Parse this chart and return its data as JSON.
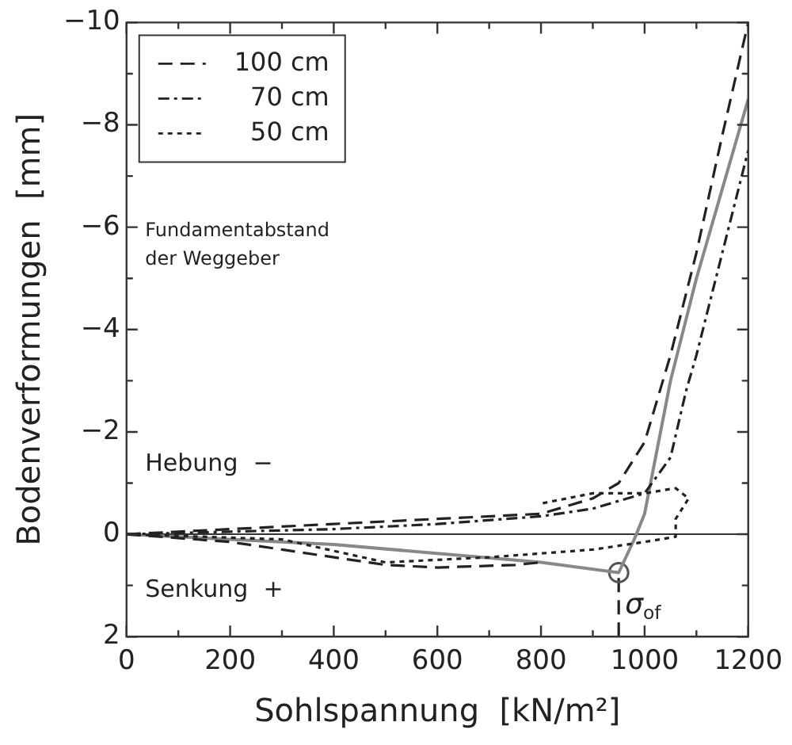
{
  "chart_data": {
    "type": "line",
    "xlabel": "Sohlspannung  [kN/m²]",
    "ylabel": "Bodenverformungen  [mm]",
    "xlim": [
      0,
      1200
    ],
    "ylim": [
      2,
      -10
    ],
    "xticks": [
      0,
      {
        "value": 100,
        "label": null
      },
      200,
      {
        "value": 300,
        "label": null
      },
      400,
      {
        "value": 500,
        "label": null
      },
      600,
      {
        "value": 700,
        "label": null
      },
      800,
      {
        "value": 900,
        "label": null
      },
      1000,
      {
        "value": 1100,
        "label": null
      },
      1200
    ],
    "yticks": [
      2,
      {
        "value": 1,
        "label": null
      },
      0,
      {
        "value": -1,
        "label": null
      },
      {
        "value": -2,
        "label": "−2"
      },
      {
        "value": -3,
        "label": null
      },
      {
        "value": -4,
        "label": "−4"
      },
      {
        "value": -5,
        "label": null
      },
      {
        "value": -6,
        "label": "−6"
      },
      {
        "value": -7,
        "label": null
      },
      {
        "value": -8,
        "label": "−8"
      },
      {
        "value": -9,
        "label": null
      },
      {
        "value": -10,
        "label": "−10"
      }
    ],
    "grid": false,
    "legend": "top left",
    "marker": "none",
    "series": [
      {
        "name": "100 cm",
        "color": "#222222",
        "line_style": "dashed",
        "x": [
          0,
          200,
          400,
          600,
          800,
          900,
          950,
          1000,
          1050,
          1100,
          1150,
          1200
        ],
        "values": [
          0,
          -0.1,
          -0.2,
          -0.3,
          -0.4,
          -0.7,
          -1.0,
          -1.8,
          -3.5,
          -5.5,
          -7.8,
          -10
        ]
      },
      {
        "name": "70 cm",
        "color": "#222222",
        "line_style": "dashdot",
        "x": [
          0,
          200,
          400,
          600,
          800,
          900,
          1000,
          1050,
          1080,
          1100,
          1150,
          1200
        ],
        "values": [
          0,
          -0.05,
          -0.1,
          -0.2,
          -0.35,
          -0.5,
          -0.8,
          -1.5,
          -2.8,
          -3.5,
          -5.5,
          -7.5
        ]
      },
      {
        "name": "50 cm",
        "color": "#222222",
        "line_style": "dotted",
        "x": [
          0,
          300,
          500,
          700,
          900,
          1000,
          1060,
          1060,
          1085,
          1060,
          1000,
          900,
          800
        ],
        "values": [
          0,
          0.1,
          0.55,
          0.45,
          0.3,
          0.15,
          0.05,
          -0.3,
          -0.7,
          -0.9,
          -0.8,
          -0.8,
          -0.6
        ]
      },
      {
        "color": "#222222",
        "line_style": "dashed",
        "x": [
          0,
          200,
          300,
          400,
          500,
          600,
          750,
          800
        ],
        "values": [
          0,
          0.15,
          0.3,
          0.45,
          0.6,
          0.65,
          0.6,
          0.55
        ]
      },
      {
        "color": "#888888",
        "line_style": "solid",
        "x": [
          0,
          400,
          800,
          950,
          980,
          1000,
          1050,
          1100,
          1200
        ],
        "values": [
          0,
          0.2,
          0.55,
          0.75,
          0.1,
          -0.4,
          -3,
          -5,
          -8.5
        ]
      },
      {
        "type": "scatter",
        "color": "#555555",
        "marker": "circle",
        "x": [
          950
        ],
        "values": [
          0.75
        ]
      },
      {
        "color": "#222222",
        "line_style": "dashed",
        "x": [
          950,
          950
        ],
        "values": [
          2,
          0.75
        ]
      }
    ],
    "ref_lines": [
      {
        "axis": "y",
        "value": 0
      }
    ],
    "annotations": [
      "Fundamentabstand\nder Weggeber",
      "Hebung  −",
      "Senkung  +",
      {
        "text": "σ$_{of}$",
        "x": 950,
        "y": 1.4
      }
    ]
  }
}
